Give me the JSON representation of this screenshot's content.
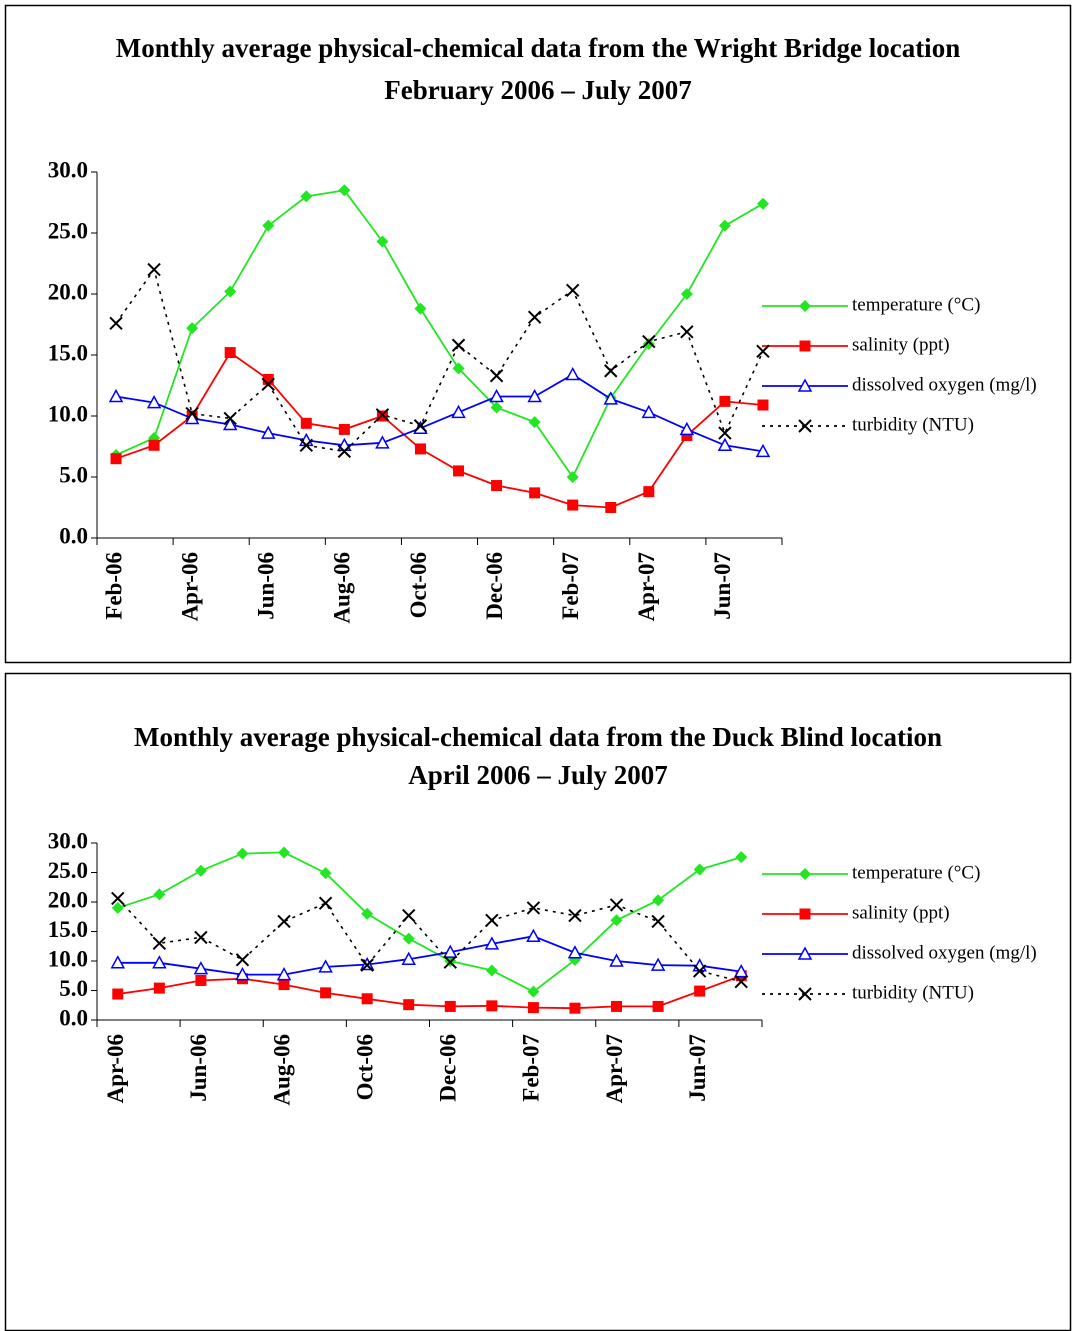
{
  "chart_data": [
    {
      "type": "line",
      "title": "Monthly average physical-chemical data from the Wright Bridge location",
      "subtitle": "February 2006 – July 2007",
      "categories": [
        "Feb-06",
        null,
        "Apr-06",
        null,
        "Jun-06",
        null,
        "Aug-06",
        null,
        "Oct-06",
        null,
        "Dec-06",
        null,
        "Feb-07",
        null,
        "Apr-07",
        null,
        "Jun-07",
        null
      ],
      "ylim": [
        0,
        30
      ],
      "yticks": [
        {
          "value": 0,
          "label": "0.0"
        },
        {
          "value": 5,
          "label": "5.0"
        },
        {
          "value": 10,
          "label": "10.0"
        },
        {
          "value": 15,
          "label": "15.0"
        },
        {
          "value": 20,
          "label": "20.0"
        },
        {
          "value": 25,
          "label": "25.0"
        },
        {
          "value": 30,
          "label": "30.0"
        }
      ],
      "legend": "right",
      "series": [
        {
          "name": "temperature (°C)",
          "color": "#22e622",
          "marker": "diamond",
          "dash": "solid",
          "values": [
            6.8,
            8.2,
            17.2,
            20.2,
            25.6,
            28.0,
            28.5,
            24.3,
            18.8,
            13.9,
            10.7,
            9.5,
            5.0,
            11.5,
            15.9,
            20.0,
            25.6,
            27.4
          ]
        },
        {
          "name": "salinity (ppt)",
          "color": "#ff0000",
          "marker": "square",
          "dash": "solid",
          "values": [
            6.5,
            7.6,
            10.0,
            15.2,
            13.0,
            9.4,
            8.9,
            10.0,
            7.3,
            5.5,
            4.3,
            3.7,
            2.7,
            2.5,
            3.8,
            8.4,
            11.2,
            10.9
          ]
        },
        {
          "name": "dissolved oxygen (mg/l)",
          "color": "#0000ff",
          "marker": "triangle",
          "dash": "solid",
          "values": [
            11.6,
            11.1,
            9.8,
            9.3,
            8.6,
            8.0,
            7.6,
            7.8,
            9.0,
            10.3,
            11.6,
            11.6,
            13.4,
            11.4,
            10.3,
            8.9,
            7.6,
            7.1
          ]
        },
        {
          "name": "turbidity (NTU)",
          "color": "#000000",
          "marker": "x",
          "dash": "dotted",
          "values": [
            17.6,
            22.0,
            10.2,
            9.8,
            12.6,
            7.6,
            7.1,
            10.1,
            9.2,
            15.8,
            13.3,
            18.1,
            20.3,
            13.7,
            16.1,
            16.9,
            8.6,
            15.3
          ]
        }
      ]
    },
    {
      "type": "line",
      "title": "Monthly average physical-chemical data from the Duck Blind location",
      "subtitle": "April 2006 – July 2007",
      "categories": [
        "Apr-06",
        null,
        "Jun-06",
        null,
        "Aug-06",
        null,
        "Oct-06",
        null,
        "Dec-06",
        null,
        "Feb-07",
        null,
        "Apr-07",
        null,
        "Jun-07",
        null
      ],
      "ylim": [
        0,
        30
      ],
      "yticks": [
        {
          "value": 0,
          "label": "0.0"
        },
        {
          "value": 5,
          "label": "5.0"
        },
        {
          "value": 10,
          "label": "10.0"
        },
        {
          "value": 15,
          "label": "15.0"
        },
        {
          "value": 20,
          "label": "20.0"
        },
        {
          "value": 25,
          "label": "25.0"
        },
        {
          "value": 30,
          "label": "30.0"
        }
      ],
      "legend": "right",
      "series": [
        {
          "name": "temperature (°C)",
          "color": "#22e622",
          "marker": "diamond",
          "dash": "solid",
          "values": [
            19.0,
            21.3,
            25.3,
            28.2,
            28.4,
            24.9,
            18.0,
            13.8,
            10.0,
            8.4,
            4.8,
            10.2,
            16.9,
            20.3,
            25.5,
            27.6
          ]
        },
        {
          "name": "salinity (ppt)",
          "color": "#ff0000",
          "marker": "square",
          "dash": "solid",
          "values": [
            4.4,
            5.4,
            6.7,
            7.0,
            6.0,
            4.6,
            3.6,
            2.6,
            2.3,
            2.4,
            2.1,
            2.0,
            2.3,
            2.3,
            4.9,
            7.5
          ]
        },
        {
          "name": "dissolved oxygen (mg/l)",
          "color": "#0000ff",
          "marker": "triangle",
          "dash": "solid",
          "values": [
            9.7,
            9.7,
            8.7,
            7.7,
            7.7,
            9.0,
            9.4,
            10.3,
            11.5,
            12.9,
            14.2,
            11.4,
            10.0,
            9.3,
            9.2,
            8.2
          ]
        },
        {
          "name": "turbidity (NTU)",
          "color": "#000000",
          "marker": "x",
          "dash": "dotted",
          "values": [
            20.6,
            13.0,
            14.0,
            10.2,
            16.7,
            19.8,
            9.3,
            17.7,
            9.8,
            16.9,
            19.0,
            17.7,
            19.5,
            16.7,
            8.3,
            6.5
          ]
        }
      ]
    }
  ]
}
